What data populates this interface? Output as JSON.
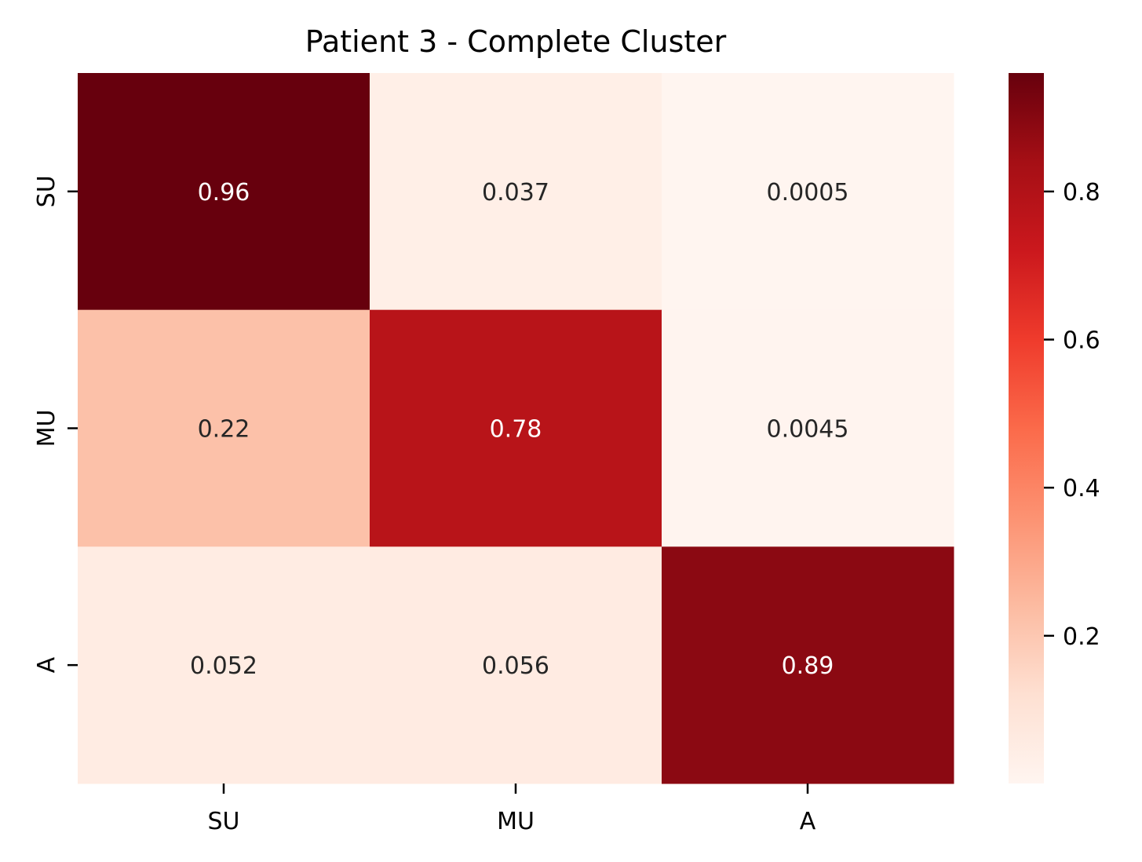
{
  "chart_data": {
    "type": "heatmap",
    "title": "Patient 3 - Complete Cluster",
    "xlabel": "",
    "ylabel": "",
    "x_categories": [
      "SU",
      "MU",
      "A"
    ],
    "y_categories": [
      "SU",
      "MU",
      "A"
    ],
    "values": [
      [
        0.96,
        0.037,
        0.0005
      ],
      [
        0.22,
        0.78,
        0.0045
      ],
      [
        0.052,
        0.056,
        0.89
      ]
    ],
    "value_labels": [
      [
        "0.96",
        "0.037",
        "0.0005"
      ],
      [
        "0.22",
        "0.78",
        "0.0045"
      ],
      [
        "0.052",
        "0.056",
        "0.89"
      ]
    ],
    "colormap": "Reds",
    "colormap_stops": [
      "#fff5f0",
      "#fee0d2",
      "#fcbba1",
      "#fc9272",
      "#fb6a4a",
      "#ef3b2c",
      "#cb181d",
      "#a50f15",
      "#67000d"
    ],
    "vmin": 0.0005,
    "vmax": 0.96,
    "colorbar_ticks": [
      0.2,
      0.4,
      0.6,
      0.8
    ],
    "colorbar_tick_labels": [
      "0.2",
      "0.4",
      "0.6",
      "0.8"
    ],
    "text_color_dark": "#262626",
    "text_color_light": "#ffffff"
  }
}
